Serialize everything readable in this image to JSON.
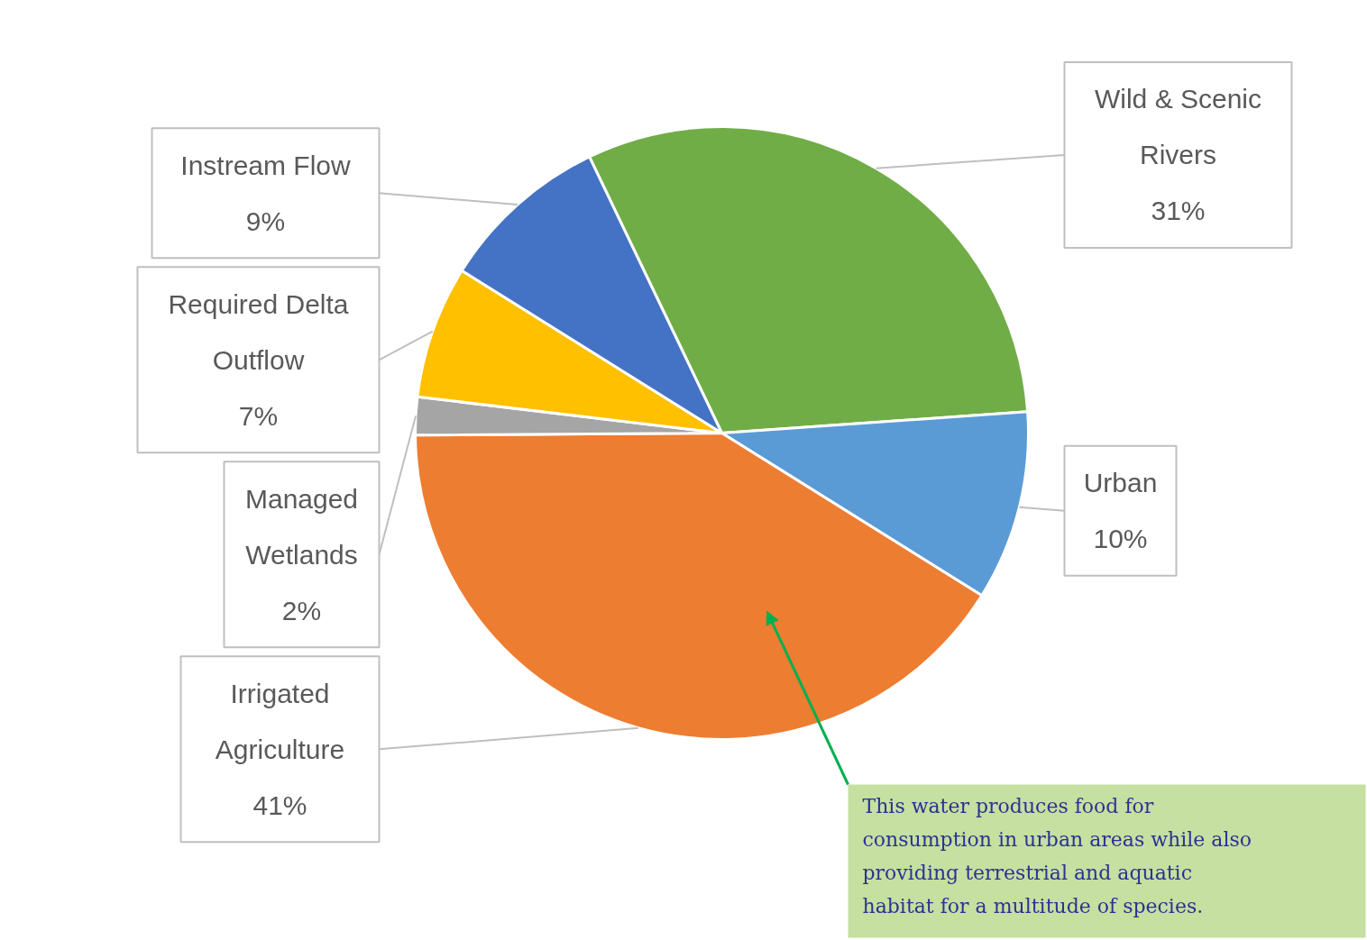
{
  "chart_data": {
    "type": "pie",
    "categories": [
      "Wild & Scenic Rivers",
      "Urban",
      "Irrigated Agriculture",
      "Managed Wetlands",
      "Required Delta Outflow",
      "Instream Flow"
    ],
    "values": [
      31,
      10,
      41,
      2,
      7,
      9
    ],
    "value_labels": [
      "31%",
      "10%",
      "41%",
      "2%",
      "7%",
      "9%"
    ],
    "colors": [
      "#70ad47",
      "#5b9bd5",
      "#ed7d31",
      "#a5a5a5",
      "#ffc000",
      "#4472c4"
    ],
    "annotations": [
      {
        "text": "This water produces food for consumption in urban areas while also providing terrestrial and aquatic habitat for a multitude of species.",
        "x": "Irrigated Agriculture"
      }
    ]
  }
}
